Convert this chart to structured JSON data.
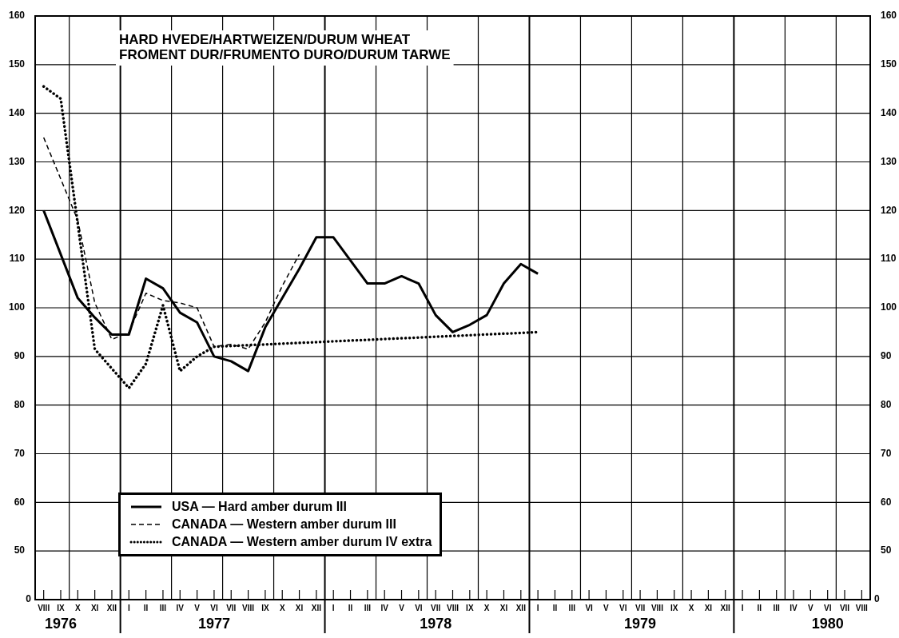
{
  "chart_data": {
    "type": "line",
    "title": "HARD HVEDE/HARTWEIZEN/DURUM WHEAT",
    "subtitle": "FROMENT DUR/FRUMENTO DURO/DURUM TARWE",
    "categories": [
      "VIII",
      "IX\n1976",
      "X",
      "XI",
      "XII",
      "I",
      "II",
      "III",
      "IV",
      "V",
      "VI\n1977",
      "VII",
      "VIII",
      "IX",
      "X",
      "XI",
      "XII",
      "I",
      "II",
      "III",
      "IV",
      "V",
      "VI",
      "VII\n1978",
      "VIII",
      "IX",
      "X",
      "XI",
      "XII",
      "I",
      "II",
      "III",
      "VI",
      "V",
      "VI",
      "VII\n1979",
      "VIII",
      "IX",
      "X",
      "XI",
      "XII",
      "I",
      "II",
      "III",
      "IV",
      "V",
      "VI\n1980",
      "VII",
      "VIII"
    ],
    "series": [
      {
        "name": "USA — Hard amber durum III",
        "color": "#000000",
        "line_style": "solid",
        "values": [
          120,
          111,
          102,
          98,
          94.5,
          94.5,
          106,
          104,
          99,
          97,
          90,
          89,
          87,
          96,
          102,
          108,
          114.5,
          114.5,
          null,
          105,
          105,
          106.5,
          105,
          98.5,
          95,
          96.5,
          98.5,
          105,
          109,
          107,
          null,
          null,
          null,
          null,
          null,
          null,
          null,
          null,
          null,
          null,
          null,
          null,
          null,
          null,
          null,
          null,
          null,
          null,
          null
        ]
      },
      {
        "name": "CANADA — Western amber durum III",
        "color": "#000000",
        "line_style": "dashed",
        "values": [
          135,
          126.5,
          118,
          101,
          93.5,
          95,
          103,
          101.5,
          101,
          100,
          92,
          92.5,
          91.5,
          97,
          104.5,
          111,
          null,
          null,
          null,
          null,
          null,
          null,
          null,
          null,
          null,
          null,
          null,
          null,
          null,
          null,
          null,
          null,
          null,
          null,
          null,
          null,
          null,
          null,
          null,
          null,
          null,
          null,
          null,
          null,
          null,
          null,
          null,
          null,
          null
        ]
      },
      {
        "name": "CANADA — Western amber durum IV extra",
        "color": "#000000",
        "line_style": "dotted",
        "values": [
          145.5,
          143,
          null,
          91.5,
          87.5,
          83.5,
          88.5,
          100.5,
          87,
          90,
          92,
          null,
          null,
          null,
          null,
          null,
          null,
          null,
          null,
          null,
          null,
          null,
          null,
          null,
          null,
          null,
          null,
          null,
          null,
          95,
          null,
          null,
          null,
          null,
          null,
          null,
          null,
          null,
          null,
          null,
          null,
          null,
          null,
          null,
          null,
          null,
          null,
          null,
          null
        ]
      }
    ],
    "ylim": [
      40,
      160
    ],
    "yticks": [
      50,
      60,
      70,
      80,
      90,
      100,
      110,
      120,
      130,
      140,
      150,
      160
    ],
    "y2lim": [
      40,
      160
    ],
    "y2ticks": [
      50,
      60,
      70,
      80,
      90,
      100,
      110,
      120,
      130,
      140,
      150,
      160
    ],
    "annotations": [
      "0",
      "0"
    ],
    "grid": true,
    "legend": "bottom left",
    "marker": "none"
  }
}
